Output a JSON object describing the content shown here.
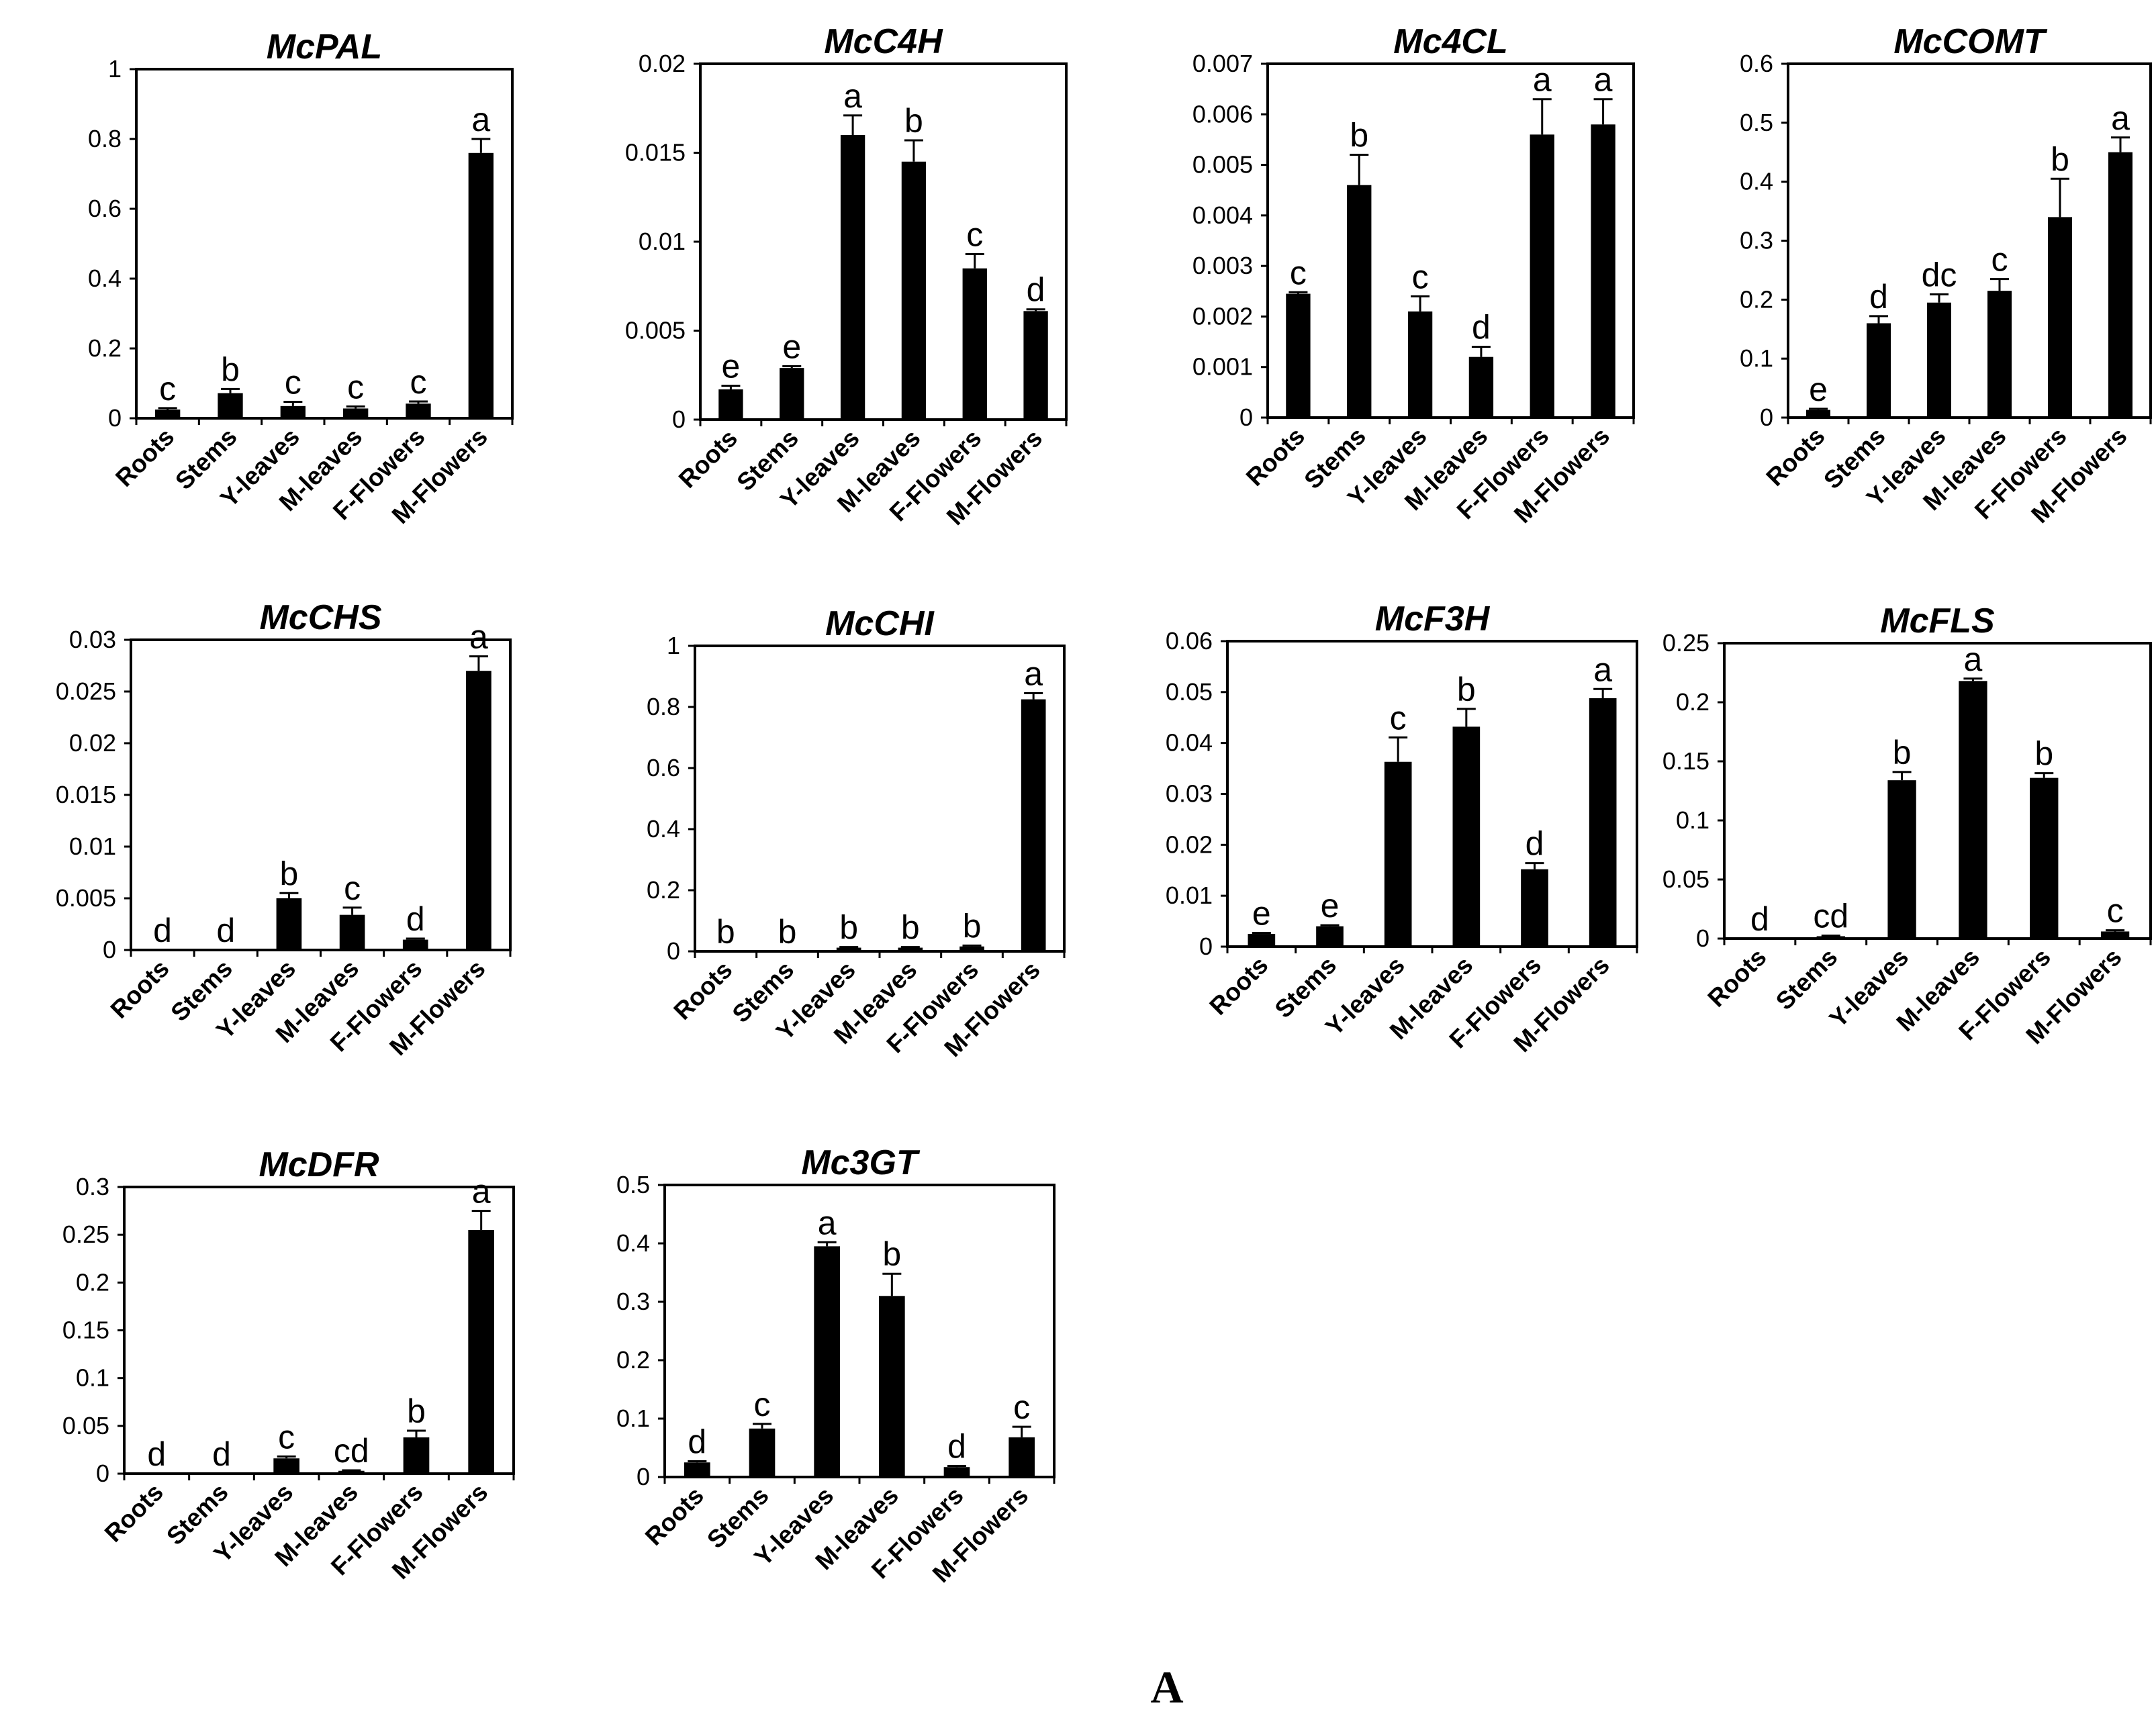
{
  "panel_label": "A",
  "chart_data": [
    {
      "type": "bar",
      "title": "McPAL",
      "categories": [
        "Roots",
        "Stems",
        "Y-leaves",
        "M-leaves",
        "F-Flowers",
        "M-Flowers"
      ],
      "values": [
        0.025,
        0.072,
        0.035,
        0.028,
        0.042,
        0.76
      ],
      "errors": [
        0.004,
        0.012,
        0.012,
        0.006,
        0.006,
        0.04
      ],
      "letters": [
        "c",
        "b",
        "c",
        "c",
        "c",
        "a"
      ],
      "yticks": [
        "0",
        "0.2",
        "0.4",
        "0.6",
        "0.8",
        "1"
      ],
      "ylim": [
        0,
        1
      ]
    },
    {
      "type": "bar",
      "title": "McC4H",
      "categories": [
        "Roots",
        "Stems",
        "Y-leaves",
        "M-leaves",
        "F-Flowers",
        "M-Flowers"
      ],
      "values": [
        0.0017,
        0.0029,
        0.016,
        0.0145,
        0.0085,
        0.0061
      ],
      "errors": [
        0.0002,
        0.0001,
        0.0011,
        0.0012,
        0.0008,
        0.0001
      ],
      "letters": [
        "e",
        "e",
        "a",
        "b",
        "c",
        "d"
      ],
      "yticks": [
        "0",
        "0.005",
        "0.01",
        "0.015",
        "0.02"
      ],
      "ylim": [
        0,
        0.02
      ]
    },
    {
      "type": "bar",
      "title": "Mc4CL",
      "categories": [
        "Roots",
        "Stems",
        "Y-leaves",
        "M-leaves",
        "F-Flowers",
        "M-Flowers"
      ],
      "values": [
        0.00245,
        0.0046,
        0.0021,
        0.0012,
        0.0056,
        0.0058
      ],
      "errors": [
        3e-05,
        0.0006,
        0.0003,
        0.0002,
        0.0007,
        0.0005
      ],
      "letters": [
        "c",
        "b",
        "c",
        "d",
        "a",
        "a"
      ],
      "yticks": [
        "0",
        "0.001",
        "0.002",
        "0.003",
        "0.004",
        "0.005",
        "0.006",
        "0.007"
      ],
      "ylim": [
        0,
        0.007
      ]
    },
    {
      "type": "bar",
      "title": "McCOMT",
      "categories": [
        "Roots",
        "Stems",
        "Y-leaves",
        "M-leaves",
        "F-Flowers",
        "M-Flowers"
      ],
      "values": [
        0.013,
        0.16,
        0.195,
        0.215,
        0.34,
        0.45
      ],
      "errors": [
        0.002,
        0.012,
        0.014,
        0.02,
        0.065,
        0.025
      ],
      "letters": [
        "e",
        "d",
        "dc",
        "c",
        "b",
        "a"
      ],
      "yticks": [
        "0",
        "0.1",
        "0.2",
        "0.3",
        "0.4",
        "0.5",
        "0.6"
      ],
      "ylim": [
        0,
        0.6
      ]
    },
    {
      "type": "bar",
      "title": "McCHS",
      "categories": [
        "Roots",
        "Stems",
        "Y-leaves",
        "M-leaves",
        "F-Flowers",
        "M-Flowers"
      ],
      "values": [
        0,
        0,
        0.005,
        0.0034,
        0.001,
        0.027
      ],
      "errors": [
        0,
        0,
        0.0005,
        0.0007,
        0.0001,
        0.0014
      ],
      "letters": [
        "d",
        "d",
        "b",
        "c",
        "d",
        "a"
      ],
      "yticks": [
        "0",
        "0.005",
        "0.01",
        "0.015",
        "0.02",
        "0.025",
        "0.03"
      ],
      "ylim": [
        0,
        0.03
      ]
    },
    {
      "type": "bar",
      "title": "McCHI",
      "categories": [
        "Roots",
        "Stems",
        "Y-leaves",
        "M-leaves",
        "F-Flowers",
        "M-Flowers"
      ],
      "values": [
        0,
        0,
        0.012,
        0.012,
        0.016,
        0.825
      ],
      "errors": [
        0,
        0,
        0.002,
        0.002,
        0.003,
        0.02
      ],
      "letters": [
        "b",
        "b",
        "b",
        "b",
        "b",
        "a"
      ],
      "yticks": [
        "0",
        "0.2",
        "0.4",
        "0.6",
        "0.8",
        "1"
      ],
      "ylim": [
        0,
        1
      ]
    },
    {
      "type": "bar",
      "title": "McF3H",
      "categories": [
        "Roots",
        "Stems",
        "Y-leaves",
        "M-leaves",
        "F-Flowers",
        "M-Flowers"
      ],
      "values": [
        0.0025,
        0.004,
        0.0363,
        0.0432,
        0.0152,
        0.0488
      ],
      "errors": [
        0.0002,
        0.0002,
        0.0048,
        0.0035,
        0.0012,
        0.0018
      ],
      "letters": [
        "e",
        "e",
        "c",
        "b",
        "d",
        "a"
      ],
      "yticks": [
        "0",
        "0.01",
        "0.02",
        "0.03",
        "0.04",
        "0.05",
        "0.06"
      ],
      "ylim": [
        0,
        0.06
      ]
    },
    {
      "type": "bar",
      "title": "McFLS",
      "categories": [
        "Roots",
        "Stems",
        "Y-leaves",
        "M-leaves",
        "F-Flowers",
        "M-Flowers"
      ],
      "values": [
        0,
        0.002,
        0.134,
        0.218,
        0.136,
        0.006
      ],
      "errors": [
        0,
        0.0005,
        0.007,
        0.002,
        0.004,
        0.001
      ],
      "letters": [
        "d",
        "cd",
        "b",
        "a",
        "b",
        "c"
      ],
      "yticks": [
        "0",
        "0.05",
        "0.1",
        "0.15",
        "0.2",
        "0.25"
      ],
      "ylim": [
        0,
        0.25
      ]
    },
    {
      "type": "bar",
      "title": "McDFR",
      "categories": [
        "Roots",
        "Stems",
        "Y-leaves",
        "M-leaves",
        "F-Flowers",
        "M-Flowers"
      ],
      "values": [
        0,
        0,
        0.016,
        0.003,
        0.038,
        0.255
      ],
      "errors": [
        0,
        0,
        0.002,
        0.0005,
        0.007,
        0.02
      ],
      "letters": [
        "d",
        "d",
        "c",
        "cd",
        "b",
        "a"
      ],
      "yticks": [
        "0",
        "0.05",
        "0.1",
        "0.15",
        "0.2",
        "0.25",
        "0.3"
      ],
      "ylim": [
        0,
        0.3
      ]
    },
    {
      "type": "bar",
      "title": "Mc3GT",
      "categories": [
        "Roots",
        "Stems",
        "Y-leaves",
        "M-leaves",
        "F-Flowers",
        "M-Flowers"
      ],
      "values": [
        0.025,
        0.083,
        0.395,
        0.31,
        0.017,
        0.068
      ],
      "errors": [
        0.002,
        0.008,
        0.007,
        0.038,
        0.002,
        0.018
      ],
      "letters": [
        "d",
        "c",
        "a",
        "b",
        "d",
        "c"
      ],
      "yticks": [
        "0",
        "0.1",
        "0.2",
        "0.3",
        "0.4",
        "0.5"
      ],
      "ylim": [
        0,
        0.5
      ]
    }
  ]
}
